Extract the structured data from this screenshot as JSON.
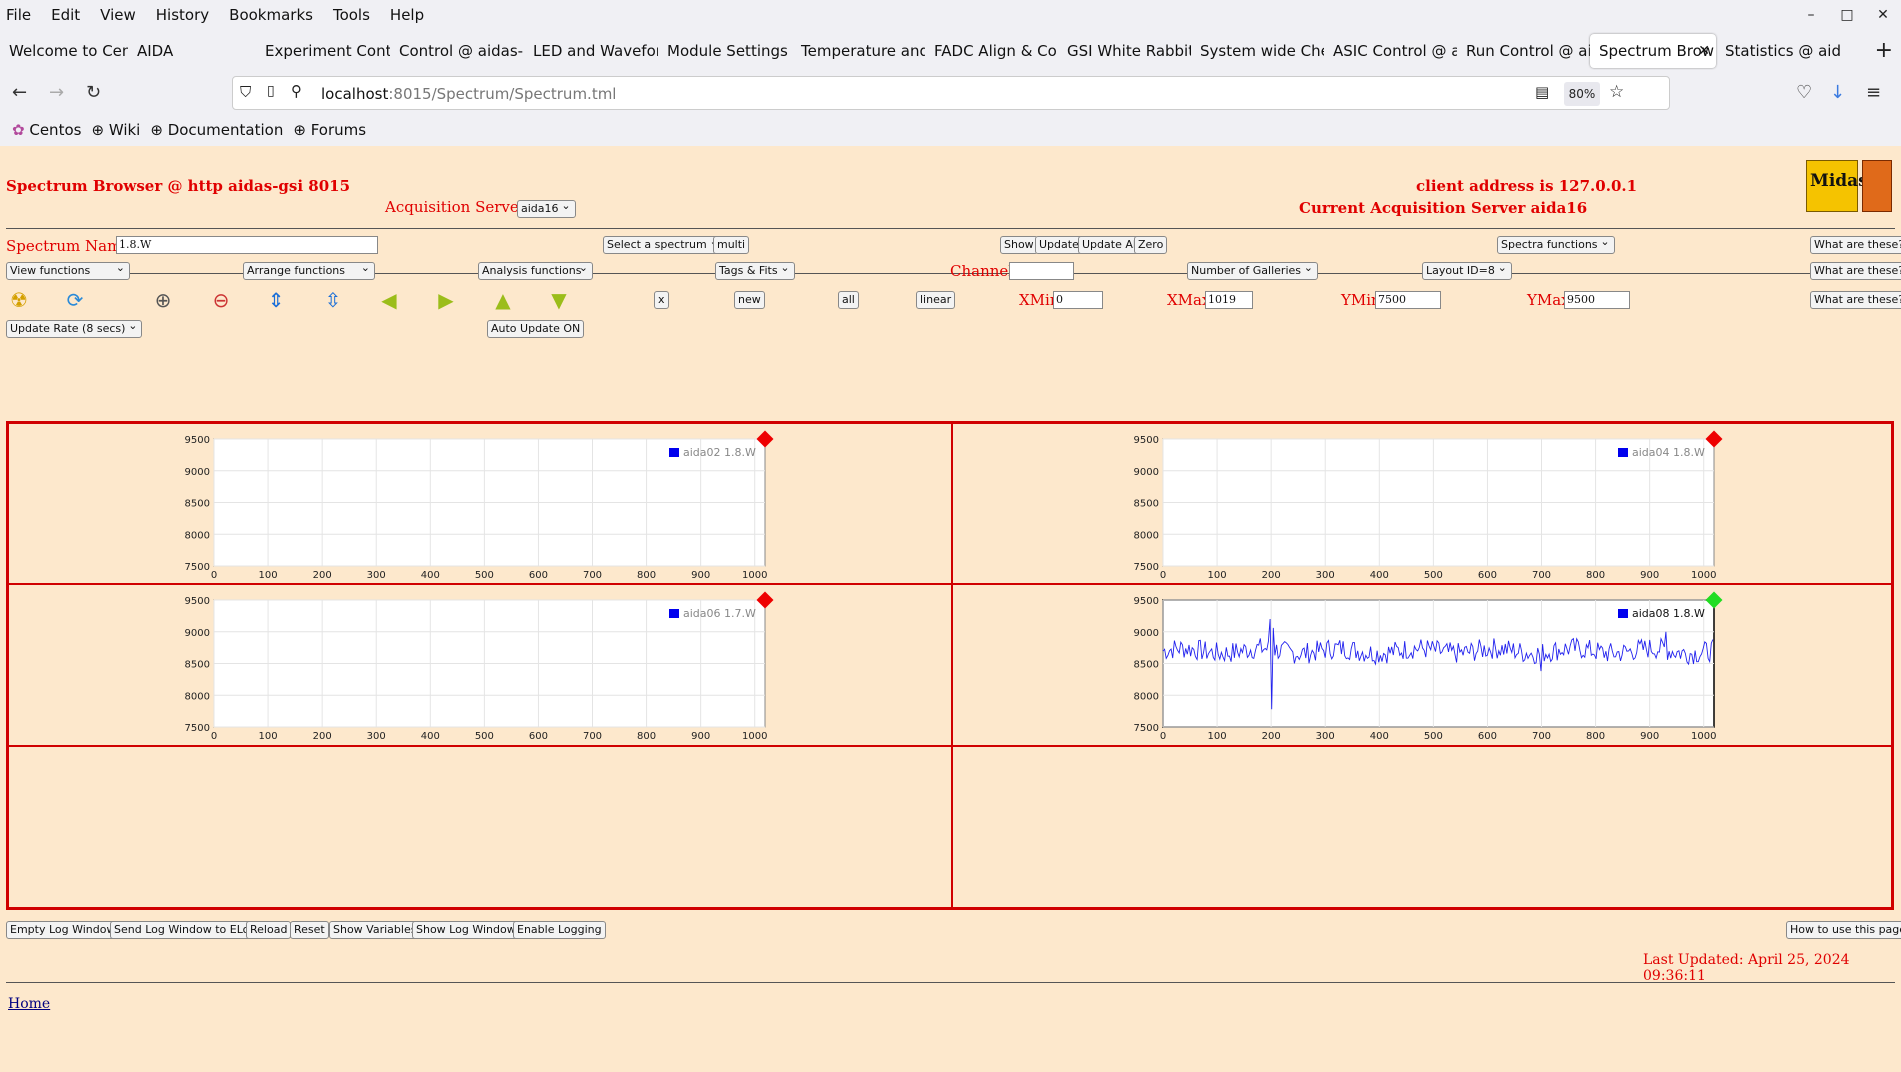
{
  "browser": {
    "menu": [
      "File",
      "Edit",
      "View",
      "History",
      "Bookmarks",
      "Tools",
      "Help"
    ],
    "tabs": [
      {
        "label": "Welcome to Cent"
      },
      {
        "label": "AIDA"
      },
      {
        "label": "Experiment Contr"
      },
      {
        "label": "Control @ aidas-"
      },
      {
        "label": "LED and Wavefor"
      },
      {
        "label": "Module Settings"
      },
      {
        "label": "Temperature and"
      },
      {
        "label": "FADC Align & Co"
      },
      {
        "label": "GSI White Rabbit"
      },
      {
        "label": "System wide Che"
      },
      {
        "label": "ASIC Control @ a"
      },
      {
        "label": "Run Control @ ai"
      },
      {
        "label": "Spectrum Brow"
      },
      {
        "label": "Statistics @ aida"
      }
    ],
    "url_host": "localhost",
    "url_rest": ":8015/Spectrum/Spectrum.tml",
    "zoom": "80%",
    "bookmarks": [
      "Centos",
      "Wiki",
      "Documentation",
      "Forums"
    ]
  },
  "header": {
    "title": "Spectrum Browser @ http aidas-gsi 8015",
    "client": "client address is 127.0.0.1",
    "acq_label": "Acquisition Servers",
    "acq_value": "aida16",
    "current_server": "Current Acquisition Server aida16"
  },
  "controls": {
    "spectrum_name_label": "Spectrum Name:",
    "spectrum_name_value": "1.8.W",
    "select_spectrum": "Select a spectrum",
    "multi": "multi",
    "show": "Show",
    "update": "Update",
    "update_all": "Update All",
    "zero": "Zero",
    "spectra_functions": "Spectra functions",
    "what": "What are these?",
    "view_functions": "View functions",
    "arrange_functions": "Arrange functions",
    "analysis_functions": "Analysis functions",
    "tags_fits": "Tags & Fits",
    "channel_label": "Channel:",
    "channel_value": "",
    "galleries": "Number of Galleries",
    "layout": "Layout ID=8",
    "x_btn": "x",
    "new_btn": "new",
    "all_btn": "all",
    "linear_btn": "linear",
    "xmin_label": "XMin",
    "xmin": "0",
    "xmax_label": "XMax",
    "xmax": "1019",
    "ymin_label": "YMin",
    "ymin": "7500",
    "ymax_label": "YMax",
    "ymax": "9500",
    "update_rate": "Update Rate (8 secs)",
    "auto_update": "Auto Update ON"
  },
  "footer": {
    "empty_log": "Empty Log Window",
    "send_log": "Send Log Window to ELog",
    "reload": "Reload",
    "reset": "Reset",
    "show_vars": "Show Variables",
    "show_log": "Show Log Window",
    "enable_logging": "Enable Logging",
    "how_to": "How to use this page",
    "last_updated": "Last Updated: April 25, 2024 09:36:11",
    "home": "Home"
  },
  "colors": {
    "red_text": "#e00000",
    "status_red": "#ee0000",
    "status_green": "#22dd22",
    "trace": "#2222ee",
    "page_bg": "#fde8cc"
  },
  "chart_data": [
    {
      "type": "line",
      "series": [
        {
          "name": "aida02 1.8.W",
          "values": []
        }
      ],
      "xlim": [
        0,
        1019
      ],
      "ylim": [
        7500,
        9500
      ],
      "xticks": [
        0,
        100,
        200,
        300,
        400,
        500,
        600,
        700,
        800,
        900,
        1000
      ],
      "yticks": [
        7500,
        8000,
        8500,
        9000,
        9500
      ],
      "status": "red",
      "active": false,
      "grid": true,
      "legend": "top-right"
    },
    {
      "type": "line",
      "series": [
        {
          "name": "aida04 1.8.W",
          "values": []
        }
      ],
      "xlim": [
        0,
        1019
      ],
      "ylim": [
        7500,
        9500
      ],
      "xticks": [
        0,
        100,
        200,
        300,
        400,
        500,
        600,
        700,
        800,
        900,
        1000
      ],
      "yticks": [
        7500,
        8000,
        8500,
        9000,
        9500
      ],
      "status": "red",
      "active": false,
      "grid": true,
      "legend": "top-right"
    },
    {
      "type": "line",
      "series": [
        {
          "name": "aida06 1.7.W",
          "values": []
        }
      ],
      "xlim": [
        0,
        1019
      ],
      "ylim": [
        7500,
        9500
      ],
      "xticks": [
        0,
        100,
        200,
        300,
        400,
        500,
        600,
        700,
        800,
        900,
        1000
      ],
      "yticks": [
        7500,
        8000,
        8500,
        9000,
        9500
      ],
      "status": "red",
      "active": false,
      "grid": true,
      "legend": "top-right"
    },
    {
      "type": "line",
      "series": [
        {
          "name": "aida08 1.8.W",
          "baseline": 8700,
          "noise": 170,
          "spikes": [
            [
              197,
              9200
            ],
            [
              200,
              7780
            ],
            [
              203,
              9060
            ],
            [
              700,
              8380
            ],
            [
              930,
              9000
            ]
          ]
        }
      ],
      "xlim": [
        0,
        1019
      ],
      "ylim": [
        7500,
        9500
      ],
      "xticks": [
        0,
        100,
        200,
        300,
        400,
        500,
        600,
        700,
        800,
        900,
        1000
      ],
      "yticks": [
        7500,
        8000,
        8500,
        9000,
        9500
      ],
      "status": "green",
      "active": true,
      "grid": true,
      "legend": "top-right"
    }
  ]
}
